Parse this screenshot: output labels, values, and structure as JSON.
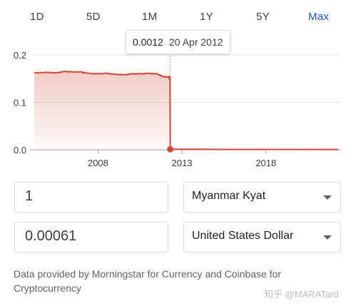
{
  "ranges": [
    {
      "label": "1D",
      "active": false
    },
    {
      "label": "5D",
      "active": false
    },
    {
      "label": "1M",
      "active": false
    },
    {
      "label": "1Y",
      "active": false
    },
    {
      "label": "5Y",
      "active": false
    },
    {
      "label": "Max",
      "active": true
    }
  ],
  "tooltip": {
    "value": "0.0012",
    "date": "20 Apr 2012"
  },
  "converter": {
    "from": {
      "amount": "1",
      "currency": "Myanmar Kyat"
    },
    "to": {
      "amount": "0.00061",
      "currency": "United States Dollar"
    }
  },
  "source_note": "Data provided by Morningstar for Currency and Coinbase for Cryptocurrency",
  "watermark": "知乎 @MARATard",
  "colors": {
    "line": "#d24a36",
    "accent": "#1a56c5",
    "grid": "#e6e6e6"
  },
  "chart_data": {
    "type": "area",
    "x_ticks": [
      "2008",
      "2013",
      "2018"
    ],
    "y_ticks": [
      "0.0",
      "0.1",
      "0.2"
    ],
    "ylim": [
      0,
      0.2
    ],
    "xlim": [
      2004.2,
      2022.3
    ],
    "highlight": {
      "x": 2012.3,
      "y": 0.0012
    },
    "x": [
      2004.2,
      2005.0,
      2005.5,
      2006.0,
      2006.5,
      2007.0,
      2007.2,
      2007.8,
      2008.5,
      2009.0,
      2009.6,
      2010.0,
      2010.5,
      2011.0,
      2011.5,
      2011.9,
      2012.2,
      2012.28,
      2012.3,
      2014,
      2016,
      2018,
      2020,
      2022.3
    ],
    "values": [
      0.162,
      0.163,
      0.162,
      0.165,
      0.164,
      0.164,
      0.162,
      0.16,
      0.161,
      0.159,
      0.158,
      0.16,
      0.16,
      0.161,
      0.16,
      0.154,
      0.153,
      0.152,
      0.0012,
      0.0011,
      0.0008,
      0.0007,
      0.0007,
      0.0006
    ]
  }
}
